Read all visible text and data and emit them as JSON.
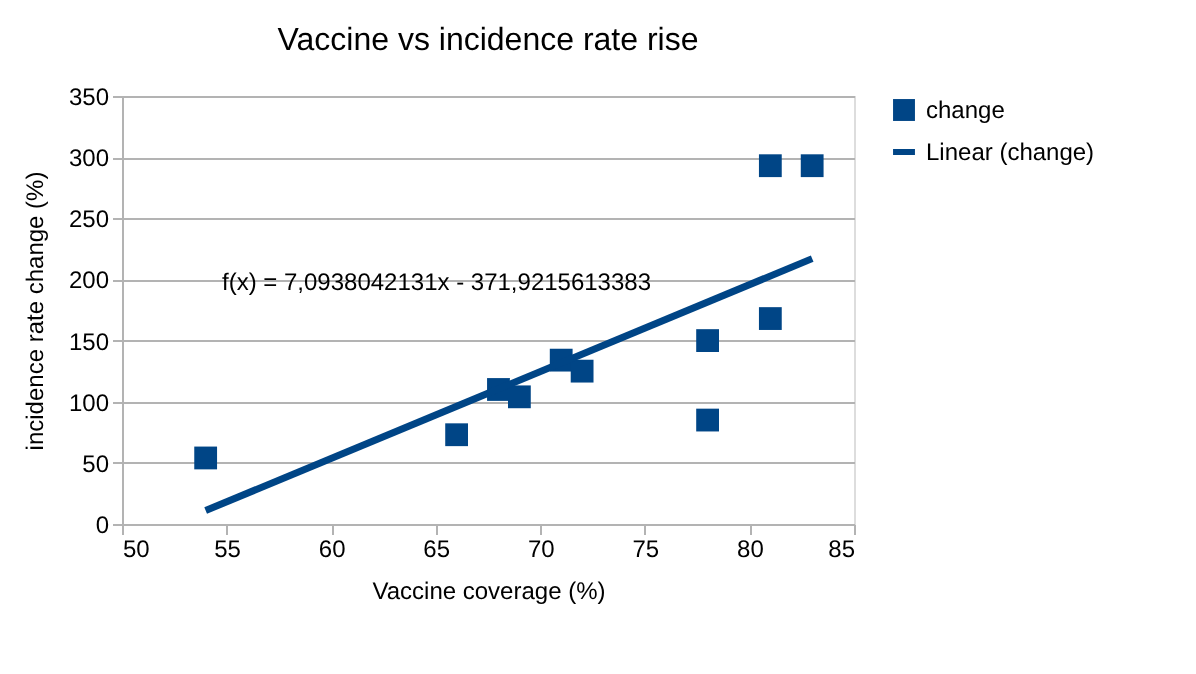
{
  "chart_data": {
    "type": "scatter",
    "title": "Vaccine vs incidence rate rise",
    "xlabel": "Vaccine coverage (%)",
    "ylabel": "incidence rate change (%)",
    "x": [
      54,
      66,
      68,
      69,
      71,
      72,
      78,
      78,
      81,
      81,
      83
    ],
    "series": [
      {
        "name": "change",
        "color": "#004586",
        "marker": "square",
        "values": [
          54,
          73,
          110,
          104,
          134,
          125,
          150,
          85,
          293,
          168,
          293
        ]
      },
      {
        "name": "Linear (change)",
        "color": "#004586",
        "type": "line",
        "x": [
          54,
          83
        ],
        "values": [
          11,
          217
        ]
      }
    ],
    "annotations": [
      "f(x) = 7,0938042131x - 371,9215613383"
    ],
    "xlim": [
      50,
      85
    ],
    "xticks": [
      50,
      55,
      60,
      65,
      70,
      75,
      80,
      85
    ],
    "ylim": [
      0,
      350
    ],
    "yticks": [
      0,
      50,
      100,
      150,
      200,
      250,
      300,
      350
    ],
    "grid": "y",
    "legend": "right"
  }
}
